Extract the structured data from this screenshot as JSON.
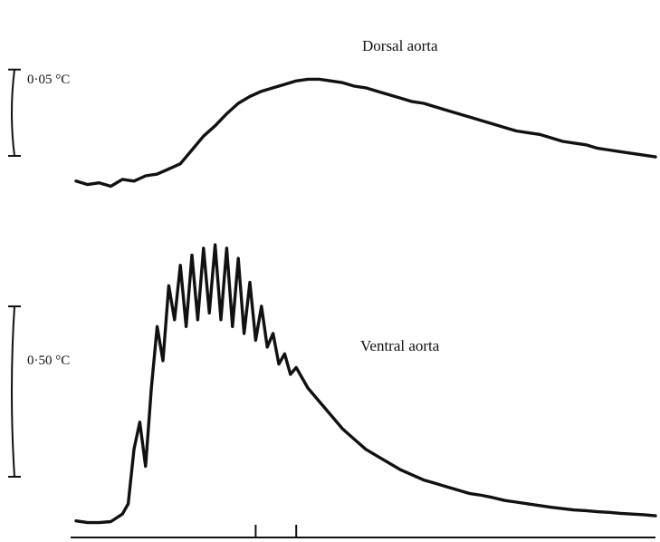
{
  "chart_data": [
    {
      "type": "line",
      "title": "",
      "series": [
        {
          "name": "Dorsal aorta",
          "x": [
            0,
            2,
            4,
            6,
            8,
            10,
            12,
            14,
            16,
            18,
            20,
            22,
            24,
            26,
            28,
            30,
            32,
            34,
            36,
            38,
            40,
            42,
            44,
            46,
            48,
            50,
            52,
            54,
            56,
            58,
            60,
            62,
            64,
            66,
            68,
            70,
            72,
            74,
            76,
            78,
            80,
            82,
            84,
            86,
            88,
            90,
            92,
            94,
            96,
            98,
            100
          ],
          "y": [
            0.004,
            0.002,
            0.003,
            0.001,
            0.005,
            0.004,
            0.007,
            0.008,
            0.011,
            0.014,
            0.022,
            0.03,
            0.036,
            0.043,
            0.049,
            0.053,
            0.056,
            0.058,
            0.06,
            0.062,
            0.063,
            0.063,
            0.062,
            0.061,
            0.059,
            0.058,
            0.056,
            0.054,
            0.052,
            0.05,
            0.049,
            0.047,
            0.045,
            0.043,
            0.041,
            0.039,
            0.037,
            0.035,
            0.033,
            0.032,
            0.031,
            0.029,
            0.027,
            0.026,
            0.025,
            0.023,
            0.022,
            0.021,
            0.02,
            0.019,
            0.018
          ]
        }
      ],
      "scale_label": "0·05 °C",
      "scale_value": 0.05,
      "ylim": [
        -0.004,
        0.08
      ]
    },
    {
      "type": "line",
      "title": "",
      "series": [
        {
          "name": "Ventral aorta",
          "x": [
            0,
            2,
            4,
            6,
            8,
            9,
            10,
            11,
            12,
            13,
            14,
            15,
            16,
            17,
            18,
            19,
            20,
            21,
            22,
            23,
            24,
            25,
            26,
            27,
            28,
            29,
            30,
            31,
            32,
            33,
            34,
            35,
            36,
            37,
            38,
            40,
            42,
            44,
            46,
            48,
            50,
            52,
            54,
            56,
            58,
            60,
            62,
            64,
            66,
            68,
            70,
            72,
            74,
            76,
            78,
            80,
            82,
            84,
            86,
            88,
            90,
            92,
            94,
            96,
            98,
            100
          ],
          "y": [
            0.01,
            0.005,
            0.005,
            0.008,
            0.03,
            0.06,
            0.22,
            0.3,
            0.17,
            0.4,
            0.58,
            0.48,
            0.7,
            0.6,
            0.76,
            0.58,
            0.79,
            0.6,
            0.81,
            0.62,
            0.82,
            0.6,
            0.81,
            0.58,
            0.78,
            0.56,
            0.71,
            0.54,
            0.64,
            0.52,
            0.56,
            0.47,
            0.5,
            0.44,
            0.46,
            0.4,
            0.36,
            0.32,
            0.28,
            0.25,
            0.22,
            0.2,
            0.18,
            0.16,
            0.145,
            0.13,
            0.12,
            0.11,
            0.1,
            0.09,
            0.085,
            0.078,
            0.07,
            0.065,
            0.06,
            0.055,
            0.05,
            0.046,
            0.042,
            0.04,
            0.037,
            0.035,
            0.032,
            0.03,
            0.028,
            0.025
          ]
        }
      ],
      "scale_label": "0·50 °C",
      "scale_value": 0.5,
      "ylim": [
        -0.02,
        0.9
      ],
      "x_ticks": [
        31,
        38
      ]
    }
  ]
}
